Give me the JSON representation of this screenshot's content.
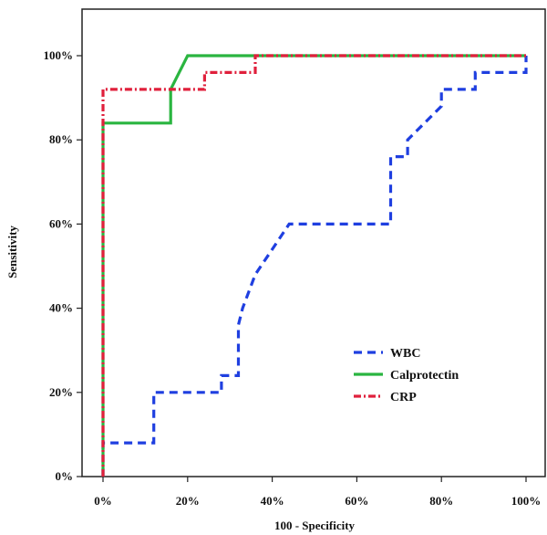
{
  "chart_data": {
    "type": "line",
    "xlabel": "100 - Specificity",
    "ylabel": "Sensitivity",
    "xlim": [
      0,
      100
    ],
    "ylim": [
      0,
      100
    ],
    "x_ticks": [
      "0%",
      "20%",
      "40%",
      "60%",
      "80%",
      "100%"
    ],
    "y_ticks": [
      "0%",
      "20%",
      "40%",
      "60%",
      "80%",
      "100%"
    ],
    "legend_position": "bottom-right",
    "grid": false,
    "series": [
      {
        "name": "WBC",
        "color": "#1f3fe0",
        "dash": "dashed",
        "x": [
          0,
          0,
          12,
          12,
          28,
          28,
          32,
          32,
          33,
          36,
          40,
          44,
          68,
          68,
          72,
          72,
          76,
          80,
          80,
          88,
          88,
          100,
          100
        ],
        "y": [
          0,
          8,
          8,
          20,
          20,
          24,
          24,
          36,
          40,
          48,
          54,
          60,
          60,
          76,
          76,
          80,
          84,
          88,
          92,
          92,
          96,
          96,
          100
        ]
      },
      {
        "name": "Calprotectin",
        "color": "#2ab540",
        "dash": "solid",
        "x": [
          0,
          0,
          16,
          16,
          20,
          100
        ],
        "y": [
          0,
          84,
          84,
          92,
          100,
          100
        ]
      },
      {
        "name": "CRP",
        "color": "#e0203c",
        "dash": "dashdot",
        "x": [
          0,
          0,
          24,
          24,
          36,
          36,
          100
        ],
        "y": [
          0,
          92,
          92,
          96,
          96,
          100,
          100
        ]
      }
    ]
  }
}
